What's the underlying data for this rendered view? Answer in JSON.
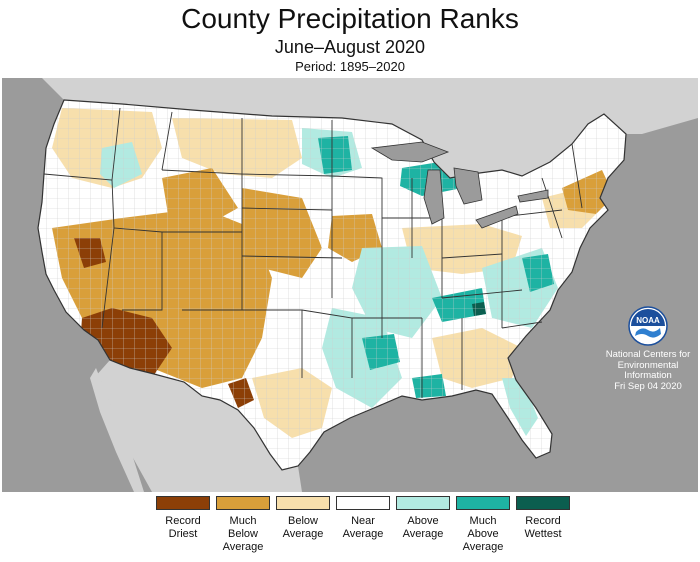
{
  "header": {
    "title": "County Precipitation Ranks",
    "subtitle": "June–August 2020",
    "period": "Period: 1895–2020"
  },
  "credit": {
    "logo_text": "NOAA",
    "line1": "National Centers for",
    "line2": "Environmental",
    "line3": "Information",
    "date": "Fri Sep 04 2020"
  },
  "legend": {
    "items": [
      {
        "label": "Record\nDriest",
        "color": "#8c3f07"
      },
      {
        "label": "Much\nBelow\nAverage",
        "color": "#d99f3a"
      },
      {
        "label": "Below\nAverage",
        "color": "#f7dfac"
      },
      {
        "label": "Near\nAverage",
        "color": "#ffffff"
      },
      {
        "label": "Above\nAverage",
        "color": "#b2eae1"
      },
      {
        "label": "Much\nAbove\nAverage",
        "color": "#1eb3a3"
      },
      {
        "label": "Record\nWettest",
        "color": "#0b5e4f"
      }
    ]
  },
  "map": {
    "ocean_color": "#9b9b9b",
    "land_color": "#ffffff",
    "county_line_color": "#c8c8c8",
    "state_line_color": "#333333"
  }
}
